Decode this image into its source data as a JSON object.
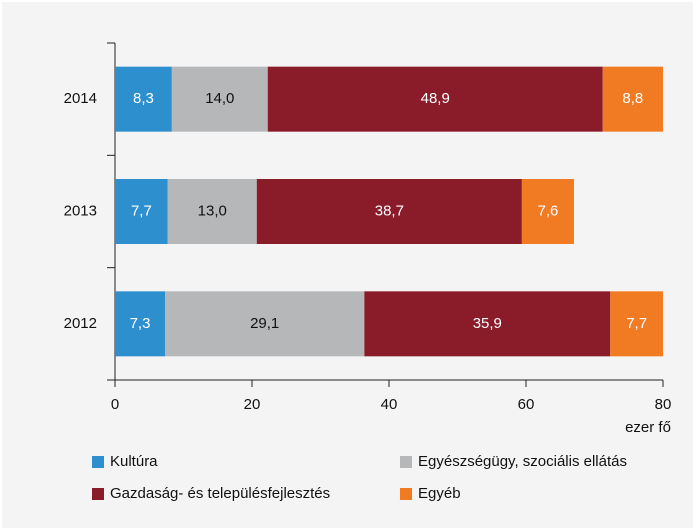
{
  "chart_data": {
    "type": "stacked_barh",
    "categories": [
      "2014",
      "2013",
      "2012"
    ],
    "series": [
      {
        "name": "Kultúra",
        "color": "#2e8fcf",
        "values": [
          8.3,
          7.7,
          7.3
        ],
        "value_labels": [
          "8,3",
          "7,7",
          "7,3"
        ]
      },
      {
        "name": "Egyészségügy, szociális ellátás",
        "color": "#b5b7b9",
        "values": [
          14.0,
          13.0,
          29.1
        ],
        "value_labels": [
          "14,0",
          "13,0",
          "29,1"
        ]
      },
      {
        "name": "Gazdaság- és településfejlesztés",
        "color": "#8a1c2a",
        "values": [
          48.9,
          38.7,
          35.9
        ],
        "value_labels": [
          "48,9",
          "38,7",
          "35,9"
        ]
      },
      {
        "name": "Egyéb",
        "color": "#f07b23",
        "values": [
          8.8,
          7.6,
          7.7
        ],
        "value_labels": [
          "8,8",
          "7,6",
          "7,7"
        ]
      }
    ],
    "x_label": "ezer fő",
    "xlim": [
      0,
      80
    ],
    "xticks": [
      0,
      20,
      40,
      60,
      80
    ]
  }
}
